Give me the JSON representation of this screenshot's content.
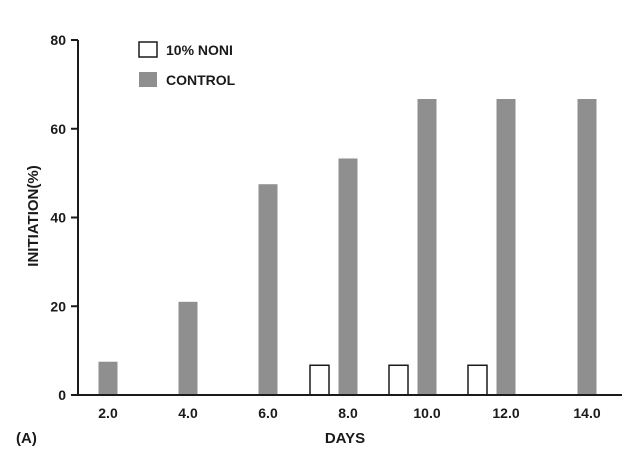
{
  "panel_label": "(A)",
  "chart_data": {
    "type": "bar",
    "categories": [
      "2.0",
      "4.0",
      "6.0",
      "8.0",
      "10.0",
      "12.0",
      "14.0"
    ],
    "series": [
      {
        "name": "10% NONI",
        "values": [
          0,
          0,
          0,
          6.7,
          6.7,
          6.7,
          0
        ],
        "color": "#ffffff"
      },
      {
        "name": "CONTROL",
        "values": [
          7.5,
          21,
          47.5,
          53.3,
          66.7,
          66.7,
          66.7
        ],
        "color": "#8f8f8f"
      }
    ],
    "xlabel": "DAYS",
    "ylabel": "INITIATION(%)",
    "ylim": [
      0,
      80
    ],
    "yticks": [
      0,
      20,
      40,
      60,
      80
    ],
    "grid": false,
    "legend": "top-left"
  }
}
